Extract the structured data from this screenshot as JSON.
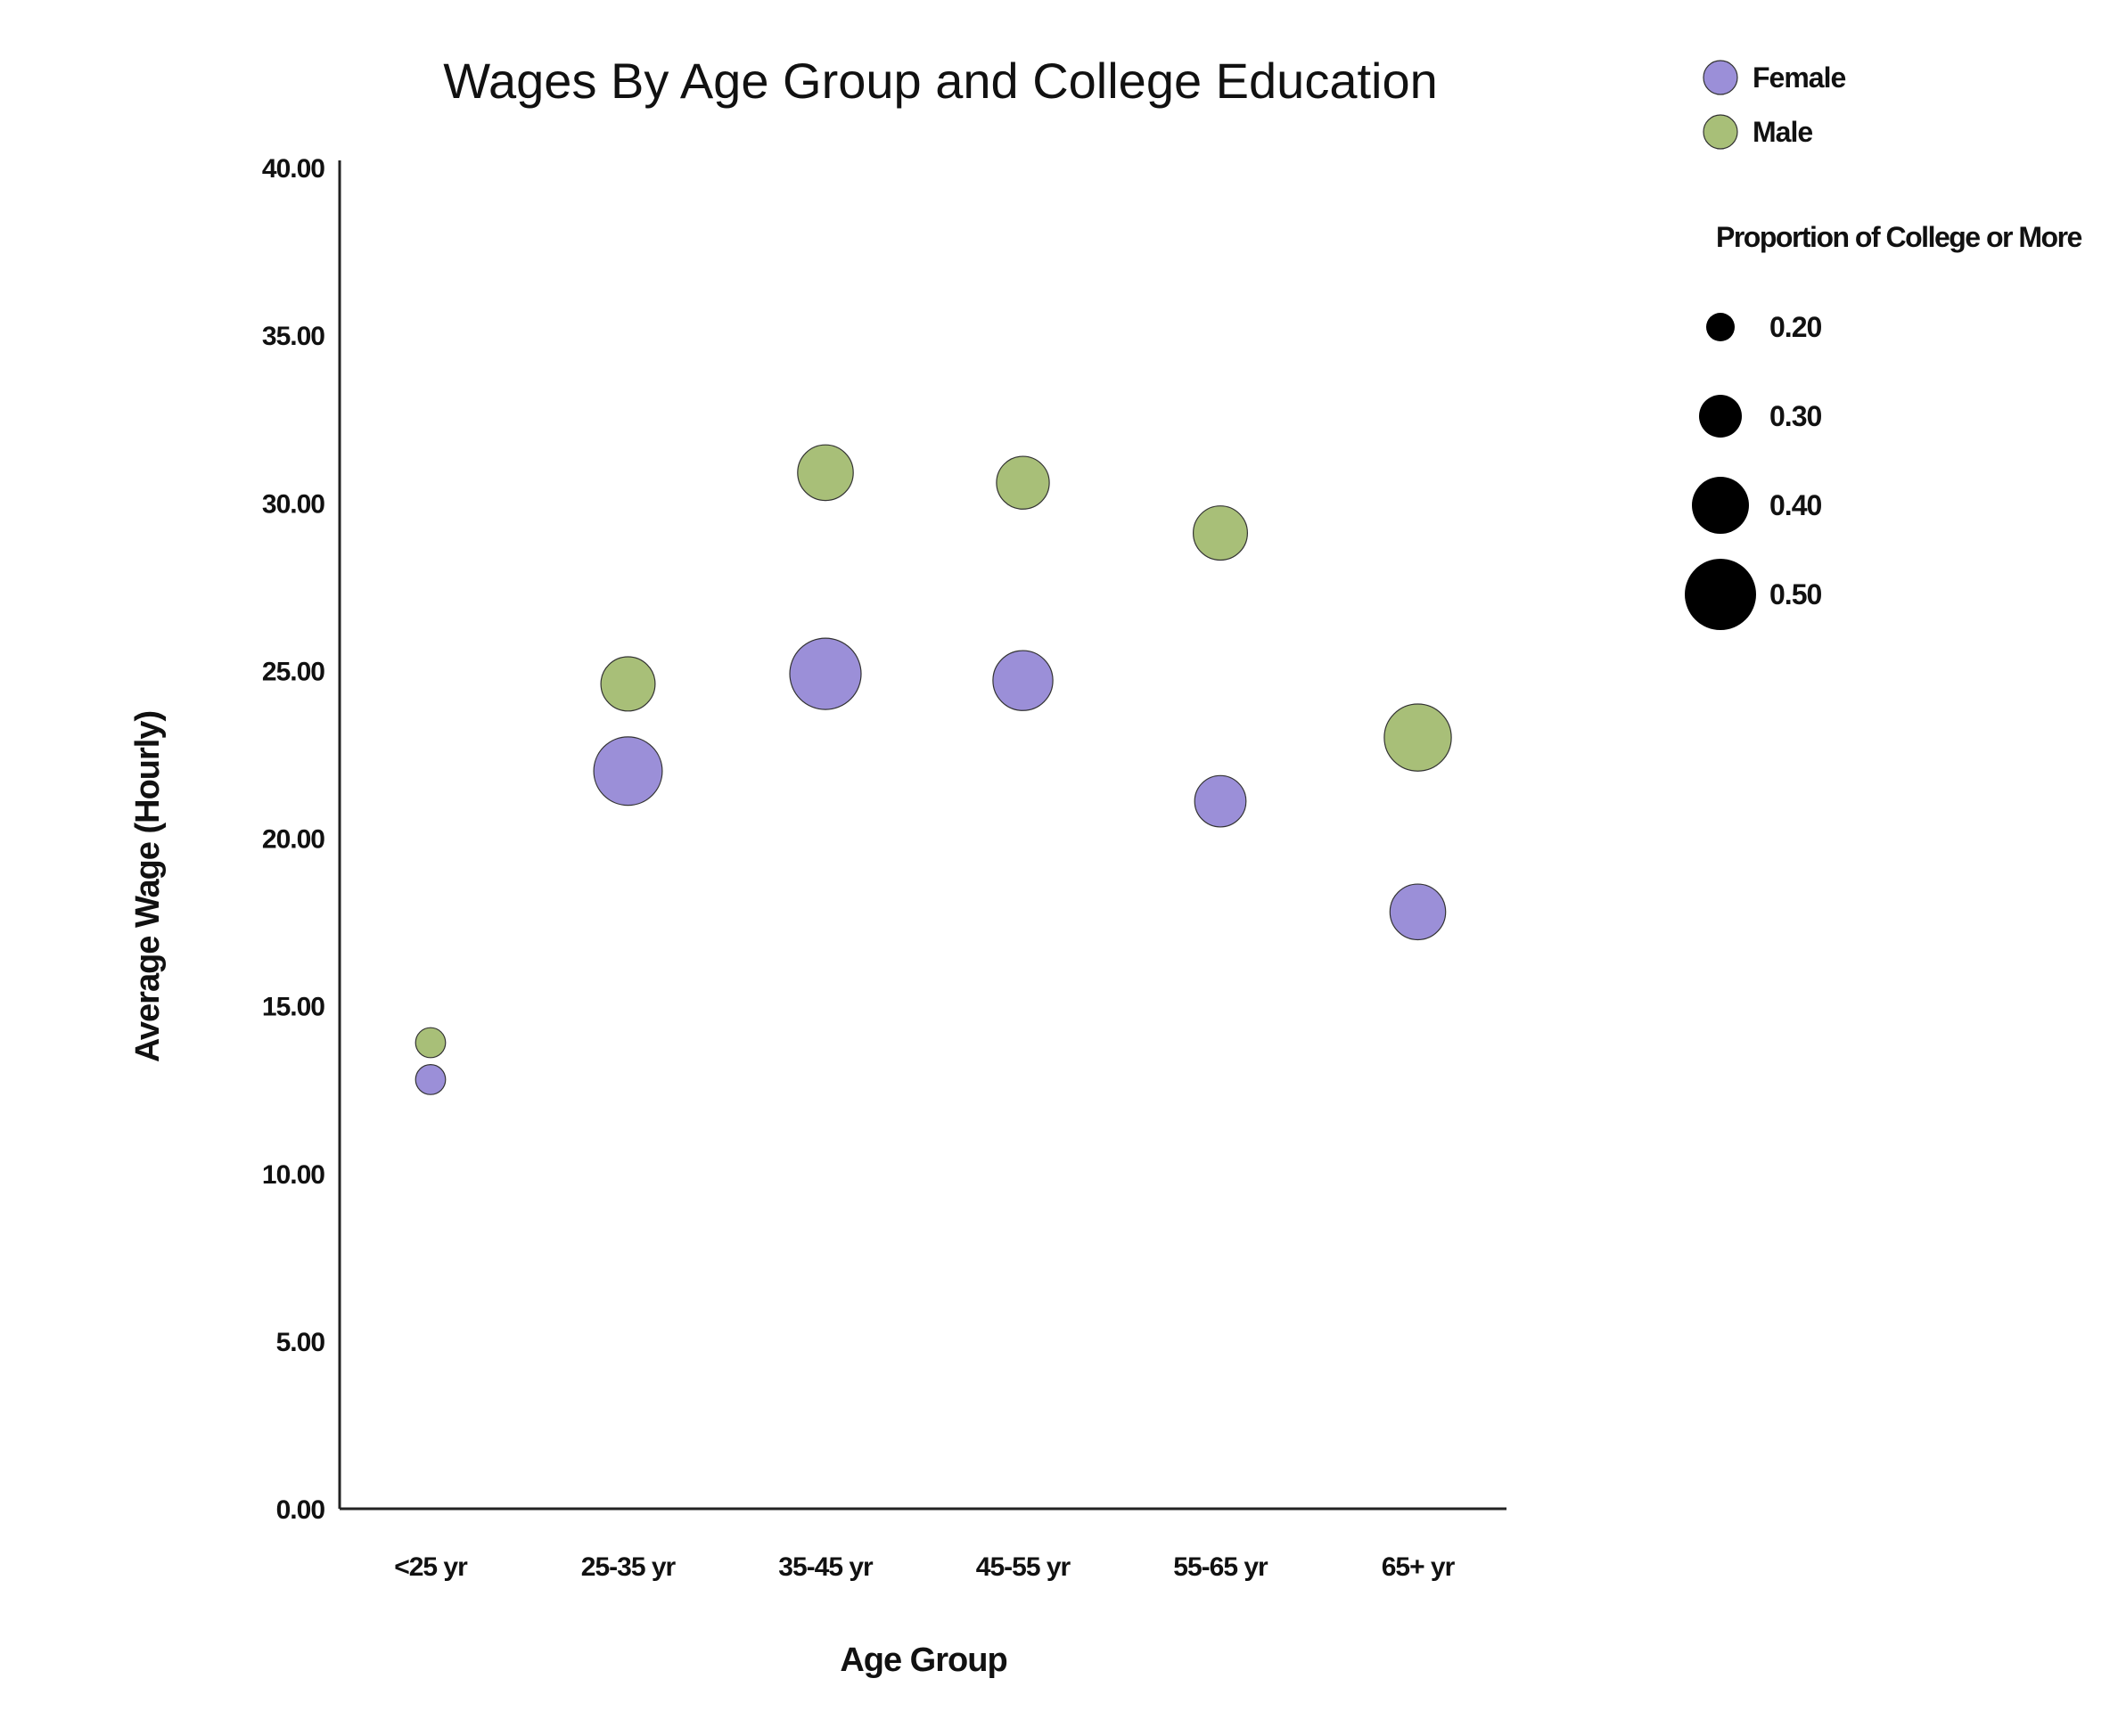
{
  "chart_data": {
    "type": "scatter",
    "title": "Wages By Age Group and College Education",
    "xlabel": "Age Group",
    "ylabel": "Average Wage (Hourly)",
    "categories": [
      "<25 yr",
      "25-35 yr",
      "35-45 yr",
      "45-55 yr",
      "55-65 yr",
      "65+ yr"
    ],
    "ylim": [
      0,
      40
    ],
    "yticks": [
      "0.00",
      "5.00",
      "10.00",
      "15.00",
      "20.00",
      "25.00",
      "30.00",
      "35.00",
      "40.00"
    ],
    "grid": false,
    "legend_position": "top-right",
    "series": [
      {
        "name": "Female",
        "color": "#9b8fd8",
        "values": [
          12.8,
          22.0,
          24.9,
          24.7,
          21.1,
          17.8
        ],
        "college_proportion": [
          0.21,
          0.48,
          0.5,
          0.42,
          0.36,
          0.39
        ]
      },
      {
        "name": "Male",
        "color": "#a8bf78",
        "values": [
          13.9,
          24.6,
          30.9,
          30.6,
          29.1,
          23.0
        ],
        "college_proportion": [
          0.21,
          0.38,
          0.39,
          0.37,
          0.38,
          0.47
        ]
      }
    ],
    "size_legend": {
      "title": "Proportion of College or More",
      "entries": [
        {
          "label": "0.20",
          "value": 0.2
        },
        {
          "label": "0.30",
          "value": 0.3
        },
        {
          "label": "0.40",
          "value": 0.4
        },
        {
          "label": "0.50",
          "value": 0.5
        }
      ]
    }
  }
}
